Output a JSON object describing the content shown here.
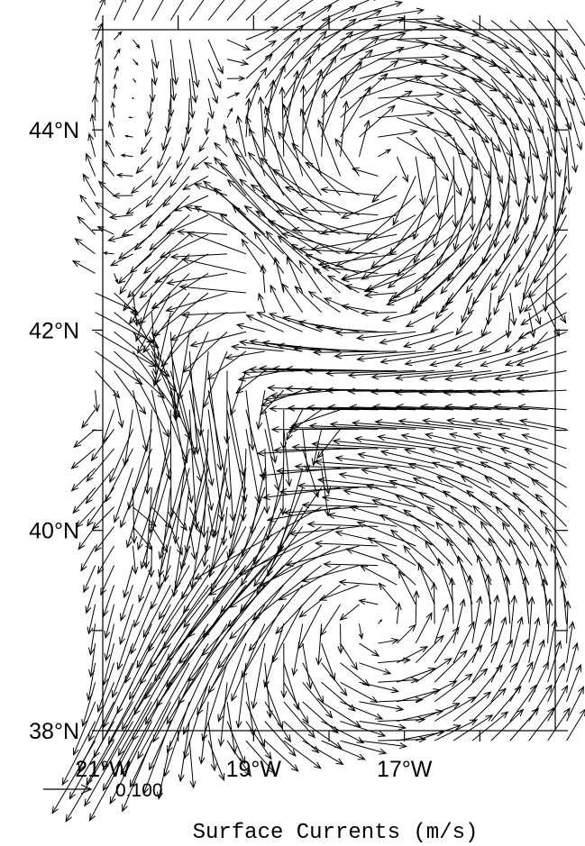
{
  "chart_data": {
    "type": "quiver",
    "title": "Surface Currents (m/s)",
    "x_axis": {
      "unit": "degrees_east",
      "range": [
        -21.0,
        -15.0
      ],
      "tick_values": [
        -21,
        -19,
        -17
      ],
      "tick_labels": [
        "21°W",
        "19°W",
        "17°W"
      ]
    },
    "y_axis": {
      "unit": "degrees_north",
      "range": [
        38.0,
        45.0
      ],
      "tick_values": [
        38,
        40,
        42,
        44
      ],
      "tick_labels": [
        "38°N",
        "40°N",
        "42°N",
        "44°N"
      ]
    },
    "reference_vector": {
      "magnitude": 0.1,
      "label": "0.100",
      "unit": "m/s"
    },
    "grid": false,
    "vector_field": {
      "description": "Approximate surface current field",
      "max_speed": 0.22,
      "features": [
        {
          "kind": "southward_jet",
          "lon": -19.9,
          "lat_range": [
            40.6,
            45.0
          ],
          "speed": 0.18
        },
        {
          "kind": "anticyclonic_eddy",
          "center": [
            -17.3,
            43.6
          ],
          "radius": 1.0,
          "speed": 0.18
        },
        {
          "kind": "eastward_jet",
          "lat": 42.3,
          "lon_range": [
            -18.7,
            -15.0
          ],
          "speed": 0.15
        },
        {
          "kind": "southeastward_jet",
          "from": [
            -21.0,
            42.0
          ],
          "to": [
            -18.2,
            40.8
          ],
          "speed": 0.2
        },
        {
          "kind": "eastward_flow",
          "lat": 40.2,
          "lon_range": [
            -20.6,
            -18.3
          ],
          "speed": 0.1
        },
        {
          "kind": "cyclonic_eddy",
          "center": [
            -17.4,
            39.2
          ],
          "radius": 1.2,
          "speed": 0.12
        },
        {
          "kind": "southwestward_jet",
          "from": [
            -18.3,
            40.2
          ],
          "to": [
            -20.8,
            37.9
          ],
          "speed": 0.17
        }
      ]
    }
  }
}
